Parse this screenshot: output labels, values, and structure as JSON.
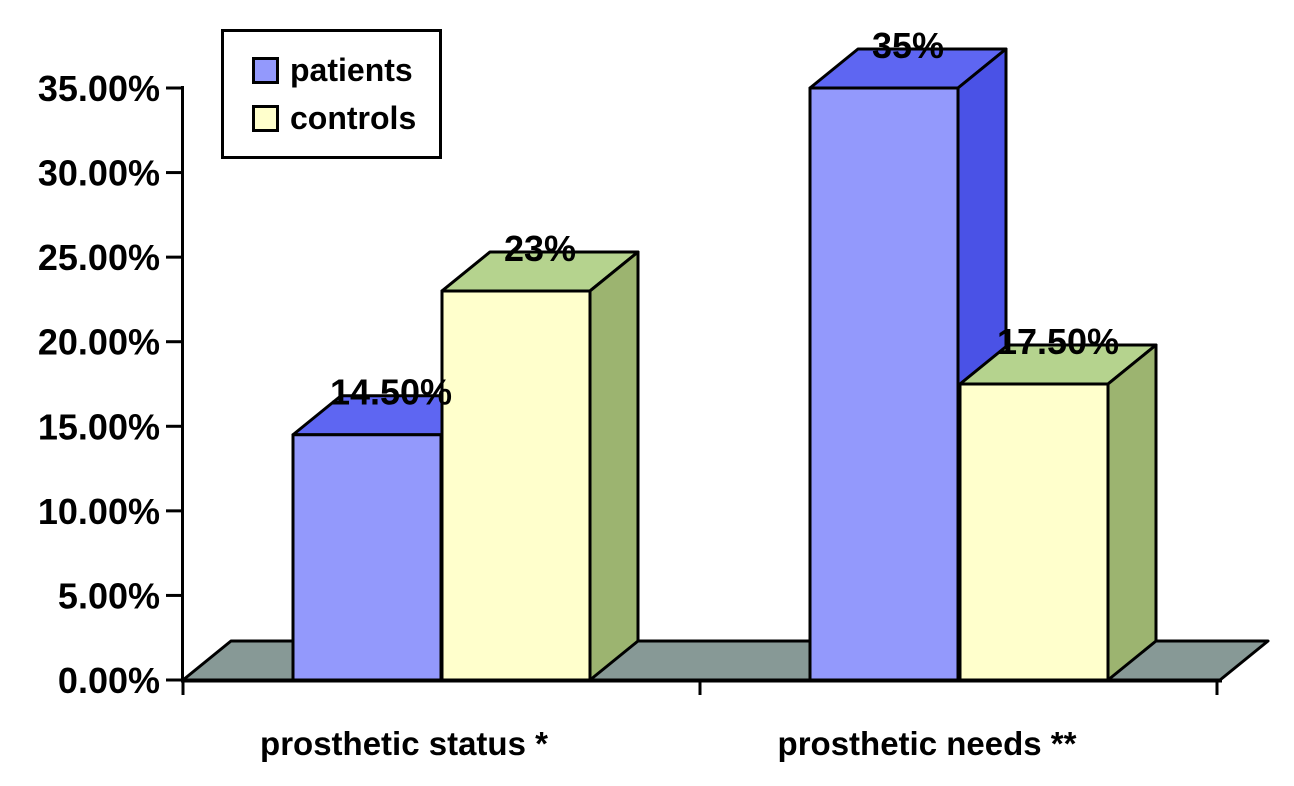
{
  "chart_data": {
    "type": "bar",
    "projection": "3d-column",
    "title": "",
    "xlabel": "",
    "ylabel": "",
    "categories": [
      "prosthetic status *",
      "prosthetic needs **"
    ],
    "series": [
      {
        "name": "patients",
        "values": [
          14.5,
          35
        ],
        "value_labels": [
          "14.50%",
          "35%"
        ],
        "color_front": "#9399FC",
        "color_top": "#5E66F2",
        "color_side": "#4A52E6"
      },
      {
        "name": "controls",
        "values": [
          23,
          17.5
        ],
        "value_labels": [
          "23%",
          "17.50%"
        ],
        "color_front": "#FFFFCC",
        "color_top": "#B5D38E",
        "color_side": "#9CB470"
      }
    ],
    "ylim": [
      0,
      35
    ],
    "ytick_step": 5,
    "ytick_labels": [
      "0.00%",
      "5.00%",
      "10.00%",
      "15.00%",
      "20.00%",
      "25.00%",
      "30.00%",
      "35.00%"
    ],
    "grid": false,
    "legend_position": "top-left",
    "axis_color": "#000000",
    "floor_color": "#879996",
    "outline_color": "#000000",
    "background_color": "#FFFFFF"
  },
  "legend": {
    "items": [
      {
        "label": "patients",
        "color": "#9399FC"
      },
      {
        "label": "controls",
        "color": "#FFFFCC"
      }
    ]
  }
}
